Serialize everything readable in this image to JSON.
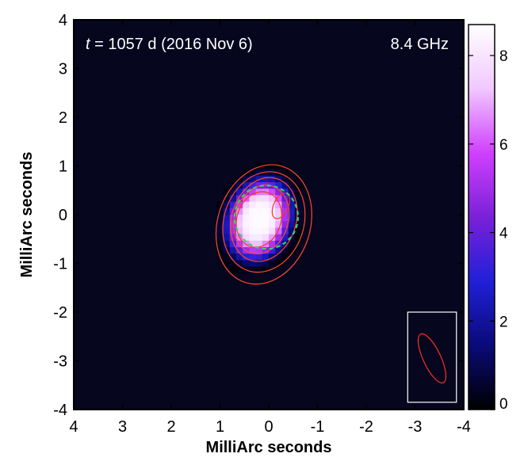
{
  "chart_data": {
    "type": "heatmap",
    "title": "",
    "xlabel": "MilliArc seconds",
    "ylabel": "MilliArc seconds",
    "xlim": [
      4,
      -4
    ],
    "ylim": [
      -4,
      4
    ],
    "x_ticks": [
      4,
      3,
      2,
      1,
      0,
      -1,
      -2,
      -3,
      -4
    ],
    "x_tick_labels": [
      "4",
      "3",
      "2",
      "1",
      "0",
      "-1",
      "-2",
      "-3",
      "-4"
    ],
    "y_ticks": [
      4,
      3,
      2,
      1,
      0,
      -1,
      -2,
      -3,
      -4
    ],
    "y_tick_labels": [
      "4",
      "3",
      "2",
      "1",
      "0",
      "-1",
      "-2",
      "-3",
      "-4"
    ],
    "annotation_left_var": "t",
    "annotation_left_rest": " = 1057 d (2016 Nov 6)",
    "annotation_right": "8.4 GHz",
    "colorbar": {
      "range": [
        0,
        8.7
      ],
      "ticks": [
        0,
        2,
        4,
        6,
        8
      ],
      "tick_labels": [
        "0",
        "2",
        "4",
        "6",
        "8"
      ],
      "colors": [
        "#000000",
        "#0a0a78",
        "#2020d8",
        "#7a20d8",
        "#d040ff",
        "#f0c8ff",
        "#ffffff"
      ]
    },
    "source": {
      "center": [
        0.2,
        -0.1
      ],
      "peak": 8.6,
      "sigma_major": 0.55,
      "sigma_minor": 0.42,
      "pa_deg": 20
    },
    "contours": [
      {
        "level": 0.6,
        "color": "#ff4a2a"
      },
      {
        "level": 0.9,
        "color": "#ff4a2a"
      },
      {
        "level": 1.6,
        "color": "#ff4a2a"
      },
      {
        "level": 2.6,
        "color": "#ff4a2a"
      },
      {
        "level": 4.5,
        "color": "#ff3020"
      },
      {
        "level": 8.2,
        "color": "#ff3020"
      }
    ],
    "contour_shells": [
      {
        "center": [
          0.1,
          -0.2
        ],
        "a": 1.25,
        "b": 0.95,
        "pa_deg": 18
      },
      {
        "center": [
          0.1,
          -0.15
        ],
        "a": 1.05,
        "b": 0.82,
        "pa_deg": 18
      },
      {
        "center": [
          0.1,
          -0.1
        ],
        "a": 0.88,
        "b": 0.66,
        "pa_deg": 18
      },
      {
        "center": [
          0.15,
          -0.1
        ],
        "a": 0.72,
        "b": 0.55,
        "pa_deg": 18
      },
      {
        "center": [
          0.2,
          -0.1
        ],
        "a": 0.58,
        "b": 0.45,
        "pa_deg": 18
      },
      {
        "center": [
          -0.25,
          0.18
        ],
        "a": 0.28,
        "b": 0.15,
        "pa_deg": 25
      }
    ],
    "fit_circle": {
      "center": [
        0.05,
        -0.05
      ],
      "radius": 0.65,
      "color": "#3ad06a",
      "style": "dashed"
    },
    "beam": {
      "box_x": [
        -2.85,
        -3.85
      ],
      "box_y": [
        -2.0,
        -3.85
      ],
      "center": [
        -3.35,
        -2.95
      ],
      "a": 0.55,
      "b": 0.18,
      "pa_deg": -25,
      "color": "#ff3020"
    },
    "background_color": "#06061e"
  }
}
